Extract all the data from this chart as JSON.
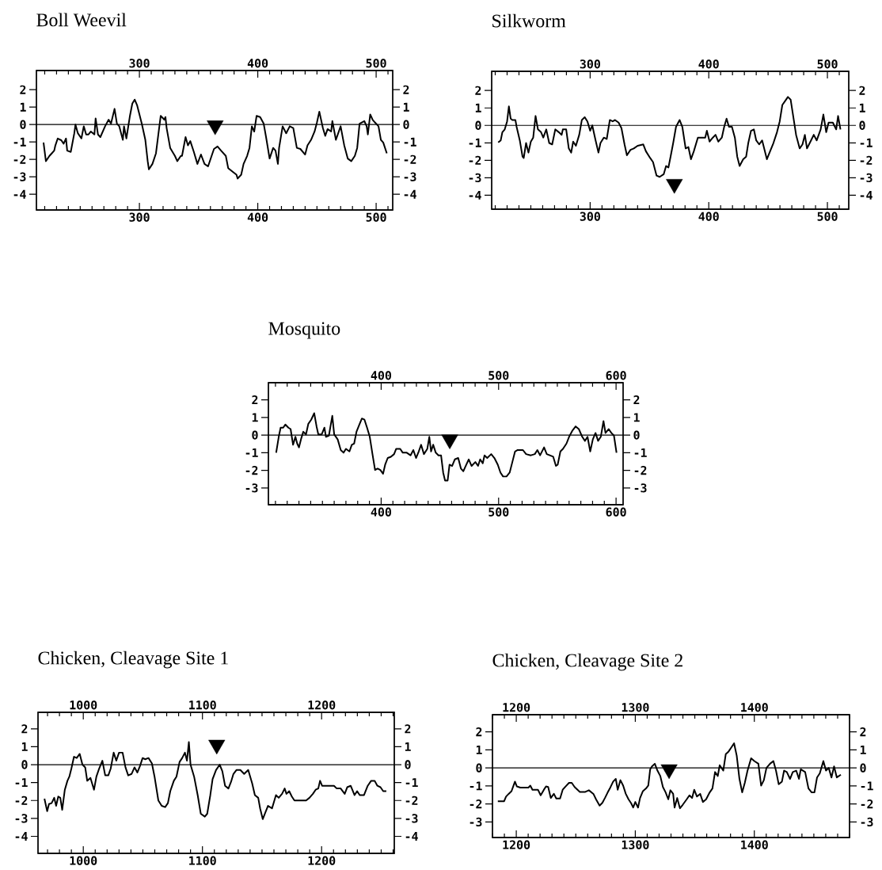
{
  "chart_data": [
    {
      "type": "line",
      "title": "Boll Weevil",
      "xlim": [
        213,
        514
      ],
      "ylim": [
        -4.9,
        3.1
      ],
      "xticks": [
        300,
        400,
        500
      ],
      "x2lim": [
        213,
        514
      ],
      "x2ticks": [
        300,
        400,
        500
      ],
      "yticks": [
        -4,
        -3,
        -2,
        -1,
        0,
        1,
        2
      ],
      "y2lim": [
        -4.9,
        3.1
      ],
      "y2ticks": [
        -4,
        -3,
        -2,
        -1,
        0,
        1,
        2
      ],
      "ref_lines": [
        {
          "axis": "y",
          "value": 0,
          "color": "#000000"
        }
      ],
      "series": [
        {
          "type": "line",
          "color": "#000000",
          "x": [
            219,
            221,
            224,
            226,
            228,
            229,
            231,
            234,
            236,
            238,
            239,
            242,
            245,
            246,
            248,
            251,
            253,
            255,
            257,
            259,
            262,
            263,
            265,
            267,
            271,
            274,
            276,
            279,
            281,
            283,
            286,
            287,
            289,
            292,
            294,
            296,
            298,
            302,
            305,
            307,
            308,
            311,
            314,
            316,
            318,
            321,
            322,
            323,
            326,
            330,
            332,
            335,
            336,
            339,
            341,
            343,
            346,
            349,
            352,
            355,
            358,
            361,
            363,
            366,
            369,
            373,
            375,
            379,
            382,
            383,
            386,
            388,
            391,
            393,
            395,
            397,
            399,
            402,
            405,
            407,
            410,
            413,
            415,
            417,
            418,
            421,
            424,
            427,
            430,
            433,
            436,
            440,
            442,
            445,
            448,
            450,
            452,
            455,
            457,
            459,
            462,
            463,
            466,
            470,
            473,
            476,
            479,
            482,
            484,
            486,
            490,
            492,
            493,
            495,
            497,
            499,
            502,
            504,
            506,
            509
          ],
          "values": [
            -1.03,
            -2.1,
            -1.8,
            -1.65,
            -1.5,
            -1.2,
            -0.8,
            -0.9,
            -1.1,
            -0.8,
            -1.5,
            -1.57,
            -0.5,
            0,
            -0.5,
            -0.8,
            -0.1,
            -0.57,
            -0.57,
            -0.4,
            -0.57,
            0.35,
            -0.57,
            -0.72,
            -0.1,
            0.28,
            0.05,
            0.9,
            0.05,
            -0.1,
            -0.88,
            -0.1,
            -0.8,
            0.5,
            1.2,
            1.43,
            1.12,
            0.05,
            -0.88,
            -2.1,
            -2.57,
            -2.26,
            -1.65,
            -0.57,
            0.5,
            0.28,
            0.43,
            -0.2,
            -1.34,
            -1.8,
            -2.1,
            -1.8,
            -1.8,
            -0.72,
            -1.2,
            -0.95,
            -1.57,
            -2.26,
            -1.72,
            -2.26,
            -2.4,
            -1.8,
            -1.4,
            -1.26,
            -1.5,
            -1.8,
            -2.5,
            -2.72,
            -2.88,
            -3.1,
            -2.88,
            -2.26,
            -1.8,
            -1.34,
            -0.1,
            -0.4,
            0.5,
            0.43,
            0.05,
            -0.72,
            -1.95,
            -1.34,
            -1.5,
            -2.26,
            -1.34,
            -0.1,
            -0.5,
            -0.1,
            -0.2,
            -1.34,
            -1.4,
            -1.72,
            -1.2,
            -0.88,
            -0.4,
            0.12,
            0.74,
            -0.2,
            -0.65,
            -0.26,
            -0.4,
            0.2,
            -0.88,
            -0.1,
            -1.18,
            -1.95,
            -2.1,
            -1.8,
            -1.34,
            0.05,
            0.2,
            -0.1,
            -0.57,
            0.58,
            0.28,
            0.12,
            -0.1,
            -0.88,
            -1.03,
            -1.65
          ]
        },
        {
          "type": "scatter",
          "marker": "triangle",
          "color": "#000000",
          "x": [
            364
          ],
          "values": [
            -0.05
          ]
        }
      ]
    },
    {
      "type": "line",
      "title": "Silkworm",
      "xlim": [
        217,
        518
      ],
      "ylim": [
        -4.8,
        3.1
      ],
      "xticks": [
        300,
        400,
        500
      ],
      "x2lim": [
        217,
        518
      ],
      "x2ticks": [
        300,
        400,
        500
      ],
      "yticks": [
        -4,
        -3,
        -2,
        -1,
        0,
        1,
        2
      ],
      "y2lim": [
        -4.8,
        3.1
      ],
      "y2ticks": [
        -4,
        -3,
        -2,
        -1,
        0,
        1,
        2
      ],
      "ref_lines": [
        {
          "axis": "y",
          "value": 0,
          "color": "#000000"
        }
      ],
      "series": [
        {
          "type": "line",
          "color": "#000000",
          "x": [
            222.5,
            224.6,
            226,
            228,
            230,
            231.5,
            233,
            234.5,
            237,
            238,
            240.7,
            243,
            244,
            246,
            248,
            250,
            252,
            254,
            256,
            258.6,
            260.5,
            263,
            265.5,
            268,
            270.6,
            273.6,
            276,
            277,
            279.8,
            282,
            284,
            285.7,
            288,
            290.8,
            293,
            295.4,
            297.7,
            300,
            301.8,
            304.6,
            307,
            308.7,
            311.5,
            314,
            316.6,
            319,
            321,
            324,
            326.4,
            329,
            331,
            334,
            336.8,
            340,
            344.8,
            347,
            350.6,
            353,
            356,
            358.6,
            362,
            364,
            366,
            367.8,
            370,
            372.4,
            375.4,
            377.7,
            380.5,
            382.8,
            385,
            387.4,
            390.8,
            394,
            397,
            398.4,
            400.7,
            403.4,
            405.7,
            408,
            411,
            413,
            415,
            417,
            419.5,
            422,
            424,
            426,
            429,
            431.5,
            433.3,
            435.6,
            438,
            440,
            442.5,
            445,
            449,
            451.7,
            454.5,
            457.5,
            459.8,
            462,
            464.4,
            466.7,
            469,
            471.3,
            473.6,
            476.6,
            479,
            481,
            482.8,
            486.2,
            488.5,
            491,
            494.3,
            496.6,
            499,
            501,
            504.6,
            507.4,
            509,
            511
          ],
          "values": [
            -0.98,
            -0.86,
            -0.39,
            -0.23,
            0.23,
            1.09,
            0.39,
            0.31,
            0.31,
            -0.08,
            -0.86,
            -1.79,
            -1.87,
            -1.01,
            -1.56,
            -0.93,
            -0.7,
            0.54,
            -0.23,
            -0.39,
            -0.7,
            -0.23,
            -1.01,
            -1.09,
            -0.23,
            -0.39,
            -0.54,
            -0.23,
            -0.23,
            -1.32,
            -1.56,
            -0.93,
            -1.17,
            -0.54,
            0.31,
            0.47,
            0.23,
            -0.31,
            0,
            -0.86,
            -1.56,
            -1.01,
            -0.7,
            -0.78,
            0.31,
            0.23,
            0.31,
            0.16,
            -0.16,
            -1.09,
            -1.71,
            -1.4,
            -1.32,
            -1.17,
            -1.09,
            -1.48,
            -1.87,
            -2.1,
            -2.88,
            -2.95,
            -2.8,
            -2.33,
            -2.41,
            -1.79,
            -1.01,
            -0.08,
            0.31,
            -0.08,
            -1.32,
            -1.24,
            -1.94,
            -1.48,
            -0.7,
            -0.7,
            -0.7,
            -0.31,
            -0.93,
            -0.7,
            -0.54,
            -0.93,
            -0.7,
            -0.08,
            0.39,
            -0.08,
            -0.08,
            -0.7,
            -1.79,
            -2.33,
            -1.94,
            -1.79,
            -1.01,
            -0.31,
            -0.23,
            -0.86,
            -1.09,
            -0.86,
            -1.94,
            -1.48,
            -1.01,
            -0.39,
            0.23,
            1.17,
            1.4,
            1.63,
            1.48,
            0.47,
            -0.54,
            -1.32,
            -1.09,
            -0.54,
            -1.32,
            -0.86,
            -0.54,
            -0.86,
            -0.23,
            0.62,
            -0.39,
            0.16,
            0.16,
            -0.23,
            0.54,
            -0.23
          ]
        },
        {
          "type": "scatter",
          "marker": "triangle",
          "color": "#000000",
          "x": [
            371
          ],
          "values": [
            -3.36
          ]
        }
      ]
    },
    {
      "type": "line",
      "title": "Mosquito",
      "xlim": [
        304,
        606
      ],
      "ylim": [
        -3.95,
        2.97
      ],
      "xticks": [
        400,
        500,
        600
      ],
      "x2lim": [
        304,
        606
      ],
      "x2ticks": [
        400,
        500,
        600
      ],
      "yticks": [
        -3,
        -2,
        -1,
        0,
        1,
        2
      ],
      "y2lim": [
        -3.95,
        2.97
      ],
      "y2ticks": [
        -3,
        -2,
        -1,
        0,
        1,
        2
      ],
      "ref_lines": [
        {
          "axis": "y",
          "value": 0,
          "color": "#000000"
        }
      ],
      "series": [
        {
          "type": "line",
          "color": "#000000",
          "x": [
            310.6,
            312.8,
            314.4,
            316.6,
            318.4,
            321,
            322.9,
            325,
            327,
            328.5,
            330,
            332,
            333.7,
            336,
            338,
            340.4,
            343,
            345,
            346.5,
            349.4,
            351.7,
            353,
            355.5,
            358.4,
            360,
            363,
            365.6,
            368,
            370,
            373,
            375,
            377,
            379,
            381.3,
            383.6,
            385.8,
            388,
            390.3,
            392.6,
            394.8,
            397,
            399.3,
            401.6,
            403.4,
            405.6,
            408.3,
            411,
            412.8,
            416.2,
            418.4,
            421.8,
            425,
            427.4,
            429.7,
            432,
            434,
            436.4,
            439.3,
            441,
            442.5,
            444.3,
            446.5,
            448.8,
            451,
            452.8,
            454.4,
            456.6,
            458.2,
            460.4,
            462.7,
            465.6,
            467.9,
            470,
            472.5,
            474.6,
            477,
            480.2,
            482.5,
            484.3,
            486.5,
            488,
            490.3,
            493.7,
            496.4,
            499.3,
            501.6,
            503.8,
            506.7,
            509.4,
            511.7,
            514,
            516.2,
            520.7,
            523.4,
            527.4,
            530.8,
            533,
            535.3,
            538.7,
            541,
            543.6,
            546.5,
            548.8,
            550.3,
            552.6,
            554.8,
            557.8,
            560,
            563,
            565.6,
            568.3,
            571.2,
            573.5,
            575.7,
            578,
            580.2,
            582.5,
            584.7,
            587,
            589.3,
            591,
            593.7,
            596,
            598.2,
            600.4
          ],
          "values": [
            -1.0,
            -0.1,
            0.42,
            0.42,
            0.6,
            0.42,
            0.34,
            -0.55,
            -0.1,
            -0.48,
            -0.7,
            -0.18,
            0.19,
            0.04,
            0.64,
            0.87,
            1.24,
            0.49,
            0.04,
            0.04,
            0.42,
            -0.1,
            -0.03,
            1.09,
            0.04,
            -0.25,
            -0.85,
            -1.0,
            -0.78,
            -0.93,
            -0.55,
            -0.48,
            0.19,
            0.57,
            0.94,
            0.87,
            0.42,
            -0.1,
            -1.08,
            -1.98,
            -1.9,
            -1.98,
            -2.2,
            -1.68,
            -1.3,
            -1.23,
            -1.08,
            -0.78,
            -0.78,
            -1.0,
            -1.0,
            -1.15,
            -0.85,
            -1.3,
            -0.93,
            -0.55,
            -1.08,
            -0.78,
            -0.1,
            -0.93,
            -0.55,
            -1.0,
            -1.15,
            -1.15,
            -2.13,
            -2.58,
            -2.58,
            -1.68,
            -1.75,
            -1.38,
            -1.3,
            -1.9,
            -2.05,
            -1.68,
            -1.38,
            -1.75,
            -1.53,
            -1.75,
            -1.38,
            -1.6,
            -1.15,
            -1.3,
            -1.08,
            -1.3,
            -1.68,
            -2.13,
            -2.35,
            -2.35,
            -2.13,
            -1.53,
            -0.93,
            -0.85,
            -0.85,
            -1.08,
            -1.15,
            -1.08,
            -0.85,
            -1.15,
            -0.7,
            -1.08,
            -1.15,
            -1.23,
            -1.75,
            -1.68,
            -0.93,
            -0.78,
            -0.48,
            -0.1,
            0.27,
            0.49,
            0.34,
            -0.1,
            -0.33,
            -0.1,
            -0.93,
            -0.25,
            0.12,
            -0.33,
            -0.1,
            0.79,
            0.12,
            0.34,
            0.12,
            -0.03,
            -1.0
          ]
        },
        {
          "type": "scatter",
          "marker": "triangle",
          "color": "#000000",
          "x": [
            458.4
          ],
          "values": [
            -0.25
          ]
        }
      ]
    },
    {
      "type": "line",
      "title": "Chicken, Cleavage Site 1",
      "xlim": [
        962,
        1261
      ],
      "ylim": [
        -4.95,
        2.92
      ],
      "xticks": [
        1000,
        1100,
        1200
      ],
      "x2lim": [
        962,
        1261
      ],
      "x2ticks": [
        1000,
        1100,
        1200
      ],
      "yticks": [
        -4,
        -3,
        -2,
        -1,
        0,
        1,
        2
      ],
      "y2lim": [
        -4.95,
        2.92
      ],
      "y2ticks": [
        -4,
        -3,
        -2,
        -1,
        0,
        1,
        2
      ],
      "ref_lines": [
        {
          "axis": "y",
          "value": 0,
          "color": "#000000"
        }
      ],
      "series": [
        {
          "type": "line",
          "color": "#000000",
          "x": [
            967.4,
            969.7,
            971.2,
            973.4,
            975.6,
            977.2,
            979,
            980.7,
            982.3,
            984.5,
            986.7,
            988.3,
            990,
            992.2,
            994.5,
            997,
            999.3,
            1001.6,
            1003.3,
            1006,
            1009,
            1011,
            1013.3,
            1016,
            1018.4,
            1021,
            1023,
            1025.5,
            1027.7,
            1030,
            1033,
            1035.4,
            1037.7,
            1040.5,
            1043,
            1045.4,
            1047.6,
            1049.8,
            1052,
            1054.7,
            1057.6,
            1059.8,
            1063,
            1065.8,
            1068.7,
            1071,
            1073,
            1076,
            1078.2,
            1080.8,
            1083,
            1085.3,
            1087,
            1088.6,
            1090,
            1093,
            1096,
            1098.6,
            1102,
            1104,
            1106.6,
            1108.5,
            1111.4,
            1114.5,
            1116.7,
            1119,
            1121.8,
            1124,
            1126,
            1128.5,
            1131.8,
            1135,
            1138.4,
            1141.7,
            1144,
            1146.8,
            1148.4,
            1150.6,
            1152.8,
            1155,
            1158.4,
            1161.7,
            1164,
            1166.8,
            1169,
            1170.5,
            1172.8,
            1175,
            1177.2,
            1180.5,
            1187,
            1189.8,
            1192.7,
            1195,
            1197.2,
            1198.7,
            1200.4,
            1210.4,
            1212.7,
            1216,
            1219.4,
            1221.5,
            1224.4,
            1227.6,
            1229.8,
            1232,
            1235.6,
            1238.7,
            1241.6,
            1244.5,
            1246.8,
            1249.4,
            1251.7,
            1254.3
          ],
          "values": [
            -1.9,
            -2.6,
            -2.2,
            -2.15,
            -1.85,
            -2.3,
            -1.78,
            -1.85,
            -2.52,
            -1.4,
            -0.9,
            -0.67,
            -0.22,
            0.44,
            0.37,
            0.6,
            0,
            -0.15,
            -0.9,
            -0.74,
            -1.4,
            -0.67,
            -0.22,
            0.22,
            -0.6,
            -0.6,
            -0.22,
            0.67,
            0.22,
            0.67,
            0.67,
            -0.15,
            -0.6,
            -0.52,
            -0.15,
            -0.44,
            -0.07,
            0.37,
            0.3,
            0.37,
            0.07,
            -0.67,
            -2.0,
            -2.3,
            -2.37,
            -2.15,
            -1.48,
            -0.9,
            -0.67,
            0.15,
            0.37,
            0.67,
            0.22,
            1.26,
            0,
            -0.67,
            -1.7,
            -2.74,
            -2.9,
            -2.74,
            -1.7,
            -0.81,
            -0.3,
            0,
            -0.37,
            -1.18,
            -1.33,
            -0.96,
            -0.52,
            -0.3,
            -0.3,
            -0.52,
            -0.3,
            -1.04,
            -1.7,
            -1.85,
            -2.44,
            -3.04,
            -2.67,
            -2.3,
            -2.44,
            -1.7,
            -1.85,
            -1.63,
            -1.33,
            -1.63,
            -1.48,
            -1.78,
            -2.0,
            -2.0,
            -2.0,
            -1.85,
            -1.63,
            -1.4,
            -1.33,
            -0.9,
            -1.18,
            -1.18,
            -1.33,
            -1.33,
            -1.63,
            -1.26,
            -1.18,
            -1.7,
            -1.48,
            -1.7,
            -1.7,
            -1.18,
            -0.9,
            -0.9,
            -1.18,
            -1.26,
            -1.48,
            -1.48
          ]
        },
        {
          "type": "scatter",
          "marker": "triangle",
          "color": "#000000",
          "x": [
            1112
          ],
          "values": [
            1.11
          ]
        }
      ]
    },
    {
      "type": "line",
      "title": "Chicken, Cleavage Site 2",
      "xlim": [
        1180,
        1480
      ],
      "ylim": [
        -3.86,
        2.95
      ],
      "xticks": [
        1200,
        1300,
        1400
      ],
      "x2lim": [
        1180,
        1480
      ],
      "x2ticks": [
        1200,
        1300,
        1400
      ],
      "yticks": [
        -3,
        -2,
        -1,
        0,
        1,
        2
      ],
      "y2lim": [
        -3.86,
        2.95
      ],
      "y2ticks": [
        -3,
        -2,
        -1,
        0,
        1,
        2
      ],
      "ref_lines": [
        {
          "axis": "y",
          "value": 0,
          "color": "#000000"
        }
      ],
      "series": [
        {
          "type": "line",
          "color": "#000000",
          "x": [
            1184.5,
            1189.8,
            1191.4,
            1193.6,
            1196,
            1197.7,
            1198.9,
            1200.5,
            1203.4,
            1210.2,
            1211.8,
            1213.6,
            1218.2,
            1220.5,
            1223.2,
            1225,
            1226.8,
            1229,
            1231.6,
            1233.6,
            1236.8,
            1239,
            1241.4,
            1244.3,
            1246.6,
            1249,
            1253.4,
            1258,
            1261,
            1264.8,
            1267,
            1270,
            1272.3,
            1274.5,
            1276.8,
            1279,
            1281.4,
            1283.6,
            1285.2,
            1287.5,
            1289.8,
            1292,
            1294.3,
            1296.6,
            1298.2,
            1300,
            1302.3,
            1304,
            1306.4,
            1309,
            1310.9,
            1312.5,
            1314,
            1316.4,
            1318.6,
            1321,
            1323.2,
            1325.5,
            1327.7,
            1329.5,
            1331.8,
            1333,
            1335.2,
            1337.5,
            1339.8,
            1343.2,
            1345.5,
            1347.7,
            1349.5,
            1351.8,
            1354.5,
            1356.8,
            1359.5,
            1362.5,
            1364.8,
            1367,
            1369.3,
            1370.9,
            1373.9,
            1376,
            1378.4,
            1380.7,
            1383,
            1385.2,
            1387.5,
            1389.8,
            1392,
            1394.3,
            1397.3,
            1400,
            1403.4,
            1405.7,
            1408,
            1410.2,
            1413.2,
            1416,
            1418.2,
            1420.5,
            1423.2,
            1425,
            1427.3,
            1430,
            1432.3,
            1435.2,
            1437.5,
            1439,
            1442.7,
            1445.5,
            1448.2,
            1450.5,
            1452.7,
            1455,
            1458,
            1460.2,
            1462.5,
            1464.8,
            1467,
            1469.3,
            1472.7
          ],
          "values": [
            -1.85,
            -1.85,
            -1.59,
            -1.44,
            -1.29,
            -0.98,
            -0.76,
            -1.03,
            -1.09,
            -1.09,
            -0.98,
            -1.21,
            -1.21,
            -1.52,
            -1.21,
            -1.03,
            -1.06,
            -1.67,
            -1.44,
            -1.7,
            -1.7,
            -1.21,
            -1.03,
            -0.83,
            -0.83,
            -1.06,
            -1.33,
            -1.33,
            -1.24,
            -1.44,
            -1.74,
            -2.09,
            -1.94,
            -1.67,
            -1.36,
            -1.09,
            -0.76,
            -0.61,
            -1.21,
            -0.68,
            -0.98,
            -1.44,
            -1.74,
            -1.97,
            -2.2,
            -1.89,
            -2.2,
            -1.67,
            -1.29,
            -1.14,
            -0.98,
            -0.08,
            0.08,
            0.23,
            -0.15,
            -0.45,
            -1.06,
            -1.36,
            -1.74,
            -1.24,
            -1.44,
            -2.2,
            -1.67,
            -2.24,
            -2.05,
            -1.74,
            -1.52,
            -1.67,
            -1.21,
            -1.59,
            -1.44,
            -1.89,
            -1.74,
            -1.36,
            -1.14,
            -0.23,
            -0.45,
            0.15,
            -0.15,
            0.76,
            0.91,
            1.14,
            1.36,
            0.68,
            -0.61,
            -1.36,
            -0.83,
            -0.15,
            0.53,
            0.38,
            0.23,
            -0.98,
            -0.68,
            0,
            0.23,
            0.38,
            -0.15,
            -0.91,
            -0.76,
            -0.15,
            -0.23,
            -0.61,
            -0.23,
            -0.15,
            -0.61,
            -0.08,
            -0.23,
            -1.14,
            -1.36,
            -1.36,
            -0.53,
            -0.3,
            0.38,
            -0.15,
            0,
            -0.53,
            0.08,
            -0.53,
            -0.38
          ]
        },
        {
          "type": "scatter",
          "marker": "triangle",
          "color": "#000000",
          "x": [
            1328.4
          ],
          "values": [
            -0.08
          ]
        }
      ]
    }
  ]
}
